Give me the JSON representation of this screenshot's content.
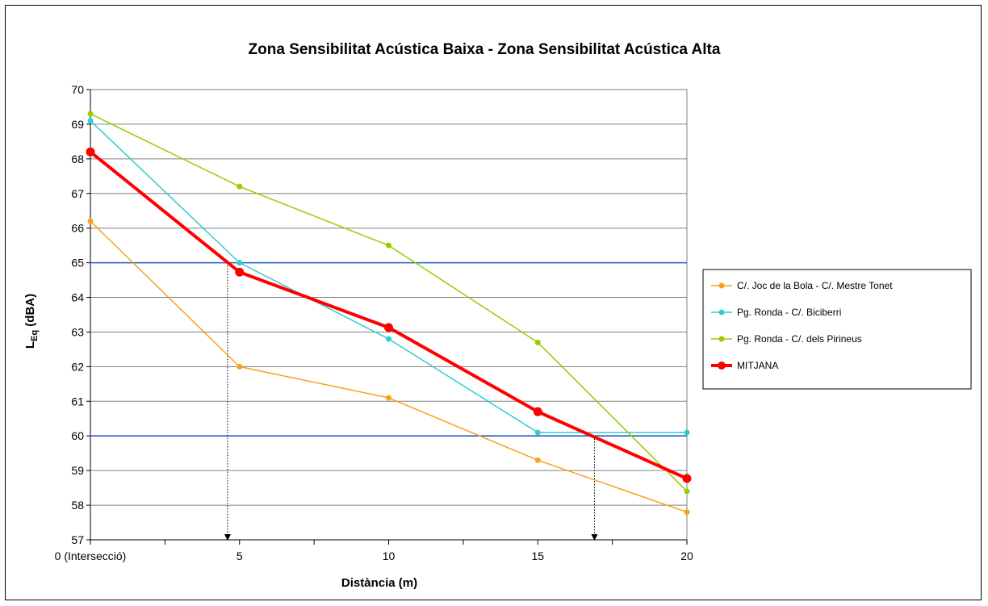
{
  "chart_data": {
    "type": "line",
    "title": "Zona Sensibilitat Acústica Baixa - Zona Sensibilitat Acústica Alta",
    "xlabel": "Distància (m)",
    "ylabel_main": "L",
    "ylabel_sub": "Eq",
    "ylabel_unit": " (dBA)",
    "x": [
      0,
      5,
      10,
      15,
      20
    ],
    "x_tick_labels": [
      "0 (Intersecció)",
      "5",
      "10",
      "15",
      "20"
    ],
    "xlim": [
      0,
      20
    ],
    "ylim": [
      57,
      70
    ],
    "y_ticks": [
      57,
      58,
      59,
      60,
      61,
      62,
      63,
      64,
      65,
      66,
      67,
      68,
      69,
      70
    ],
    "grid": true,
    "legend_position": "right",
    "series": [
      {
        "name": "C/. Joc de la Bola - C/. Mestre Tonet",
        "color": "#F7A11C",
        "values": [
          66.2,
          62.0,
          61.1,
          59.3,
          57.8
        ]
      },
      {
        "name": "Pg. Ronda - C/. Biciberri",
        "color": "#33CCCC",
        "values": [
          69.1,
          65.0,
          62.8,
          60.1,
          60.1
        ]
      },
      {
        "name": "Pg. Ronda - C/. dels Pirineus",
        "color": "#99CC00",
        "values": [
          69.3,
          67.2,
          65.5,
          62.7,
          58.4
        ]
      },
      {
        "name": "MITJANA",
        "color": "#FF0000",
        "values": [
          68.2,
          64.73,
          63.13,
          60.7,
          58.77
        ]
      }
    ],
    "reference_lines": [
      {
        "y": 65,
        "color": "#1F5FD0"
      },
      {
        "y": 60,
        "color": "#1F5FD0"
      }
    ],
    "threshold_markers": [
      {
        "x": 4.6,
        "y": 65
      },
      {
        "x": 16.9,
        "y": 60
      }
    ]
  }
}
